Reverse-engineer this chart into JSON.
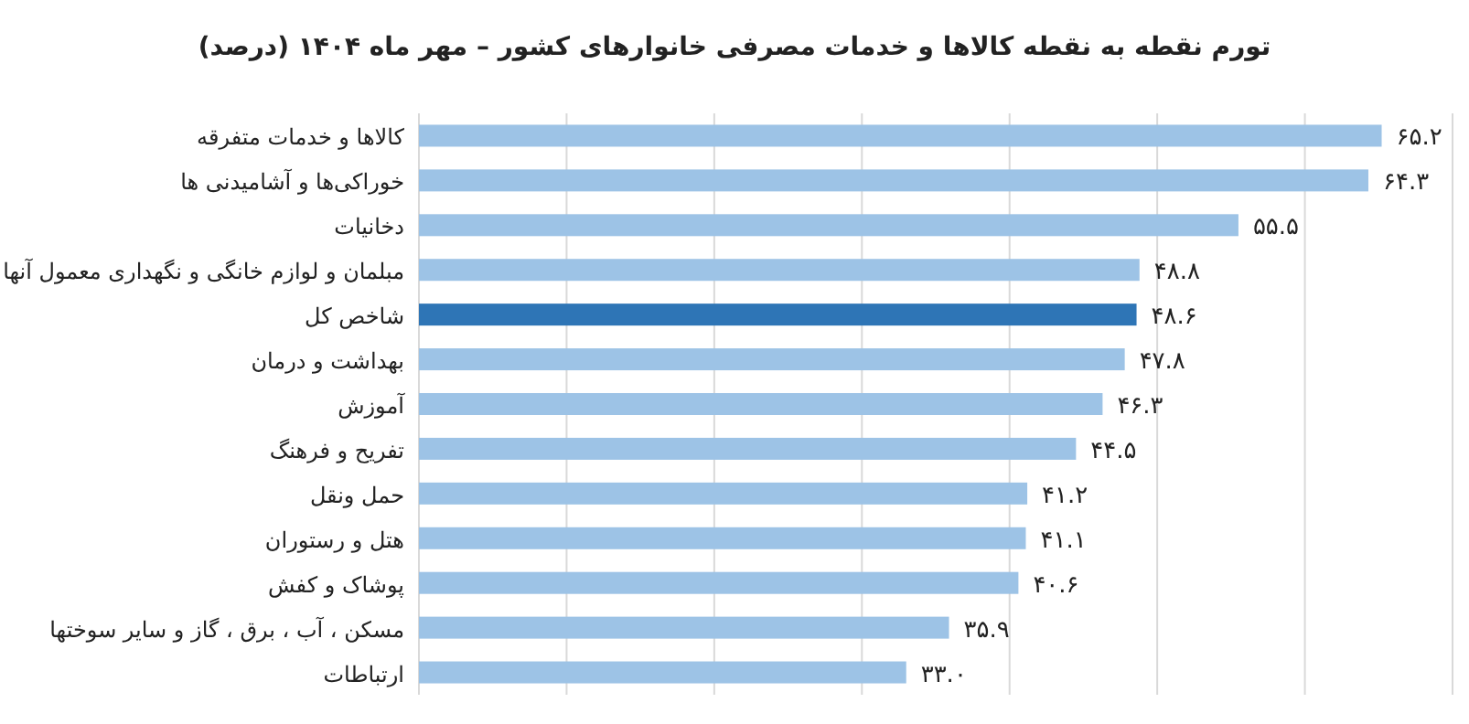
{
  "chart_data": {
    "type": "bar",
    "orientation": "horizontal",
    "title": "تورم نقطه به نقطه کالاها و خدمات مصرفی خانوارهای کشور – مهر ماه ۱۴۰۴ (درصد)",
    "categories": [
      "کالاها و خدمات متفرقه",
      "خوراکی‌ها و آشامیدنی ها",
      "دخانیات",
      "مبلمان و لوازم خانگی و نگهداری معمول آنها",
      "شاخص کل",
      "بهداشت و درمان",
      "آموزش",
      "تفریح و فرهنگ",
      "حمل ونقل",
      "هتل و رستوران",
      "پوشاک و کفش",
      "مسکن ، آب ، برق ، گاز و سایر سوختها",
      "ارتباطات"
    ],
    "values": [
      65.2,
      64.3,
      55.5,
      48.8,
      48.6,
      47.8,
      46.3,
      44.5,
      41.2,
      41.1,
      40.6,
      35.9,
      33.0
    ],
    "value_labels": [
      "۶۵.۲",
      "۶۴.۳",
      "۵۵.۵",
      "۴۸.۸",
      "۴۸.۶",
      "۴۷.۸",
      "۴۶.۳",
      "۴۴.۵",
      "۴۱.۲",
      "۴۱.۱",
      "۴۰.۶",
      "۳۵.۹",
      "۳۳.۰"
    ],
    "colors": [
      "#9dc3e6",
      "#9dc3e6",
      "#9dc3e6",
      "#9dc3e6",
      "#2e75b6",
      "#9dc3e6",
      "#9dc3e6",
      "#9dc3e6",
      "#9dc3e6",
      "#9dc3e6",
      "#9dc3e6",
      "#9dc3e6",
      "#9dc3e6"
    ],
    "xlim": [
      0,
      70
    ],
    "xticks": [
      {
        "value": 0,
        "label": null
      },
      {
        "value": 10,
        "label": null
      },
      {
        "value": 20,
        "label": null
      },
      {
        "value": 30,
        "label": null
      },
      {
        "value": 40,
        "label": null
      },
      {
        "value": 50,
        "label": null
      },
      {
        "value": 60,
        "label": null
      },
      {
        "value": 70,
        "label": null
      }
    ],
    "grid": "x",
    "tick_labels": "y"
  }
}
